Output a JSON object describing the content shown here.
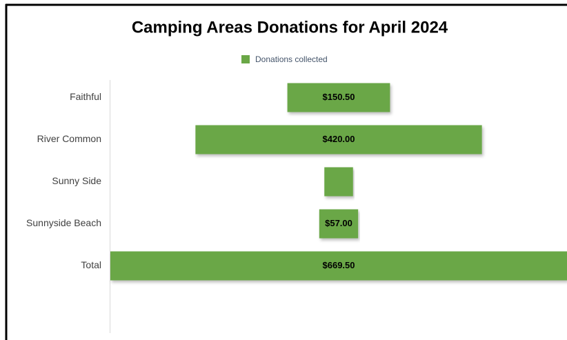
{
  "chart_data": {
    "type": "funnel",
    "title": "Camping Areas Donations for April 2024",
    "categories": [
      "Faithful",
      "River Common",
      "Sunny Side",
      "Sunnyside Beach",
      "Total"
    ],
    "series": [
      {
        "name": "Donations collected",
        "color": "#6aa746",
        "values": [
          150.5,
          420,
          42,
          57,
          669.5
        ],
        "value_labels": [
          "$150.50",
          "$420.00",
          null,
          "$57.00",
          "$669.50"
        ]
      }
    ]
  }
}
